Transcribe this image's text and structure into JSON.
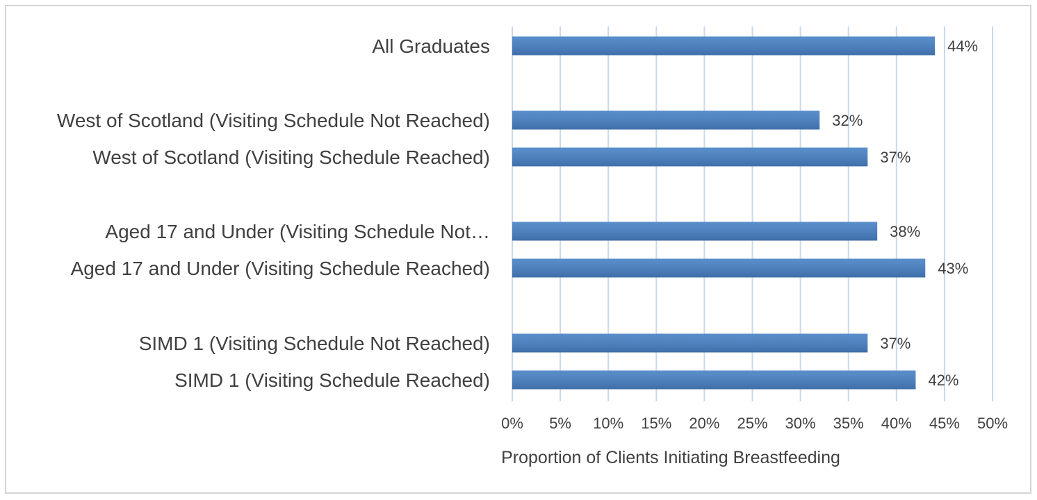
{
  "colors": {
    "bar": "#4f81bd",
    "grid": "#c9d9ec",
    "text": "#404040",
    "frame": "#d4d4d4"
  },
  "chart_data": {
    "type": "bar",
    "orientation": "horizontal",
    "categories": [
      "All Graduates",
      "West of Scotland (Visiting Schedule Not Reached)",
      "West of Scotland (Visiting Schedule Reached)",
      "Aged 17 and Under (Visiting Schedule Not…",
      "Aged 17 and Under (Visiting Schedule Reached)",
      "SIMD 1 (Visiting Schedule Not Reached)",
      "SIMD 1 (Visiting Schedule Reached)"
    ],
    "values": [
      44,
      32,
      37,
      38,
      43,
      37,
      42
    ],
    "data_labels": [
      "44%",
      "32%",
      "37%",
      "38%",
      "43%",
      "37%",
      "42%"
    ],
    "xlabel": "Proportion of Clients Initiating Breastfeeding",
    "ylabel": "",
    "xlim": [
      0,
      50
    ],
    "x_ticks": [
      0,
      5,
      10,
      15,
      20,
      25,
      30,
      35,
      40,
      45,
      50
    ],
    "x_tick_labels": [
      "0%",
      "5%",
      "10%",
      "15%",
      "20%",
      "25%",
      "30%",
      "35%",
      "40%",
      "45%",
      "50%"
    ],
    "grid": true,
    "legend": "none"
  }
}
